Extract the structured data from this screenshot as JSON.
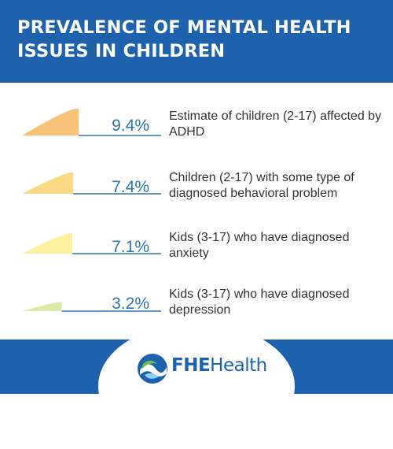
{
  "header": {
    "title": "PREVALENCE OF MENTAL HEALTH ISSUES IN CHILDREN"
  },
  "chart_data": {
    "type": "bar",
    "title": "PREVALENCE OF MENTAL HEALTH ISSUES IN CHILDREN",
    "unit": "%",
    "items": [
      {
        "value": 9.4,
        "label": "9.4%",
        "description": "Estimate of children (2-17) affected by ADHD",
        "color": "#f9c27a"
      },
      {
        "value": 7.4,
        "label": "7.4%",
        "description": "Children (2-17) with some type of diagnosed behavioral problem",
        "color": "#fbd985"
      },
      {
        "value": 7.1,
        "label": "7.1%",
        "description": "Kids (3-17) who have diagnosed anxiety",
        "color": "#fdf0a0"
      },
      {
        "value": 3.2,
        "label": "3.2%",
        "description": "Kids (3-17) who have diagnosed depression",
        "color": "#dde9a6"
      }
    ]
  },
  "colors": {
    "brand_blue": "#1e62ae",
    "value_blue": "#2e73b8",
    "underline": "#2e73b8"
  },
  "footer": {
    "logo_brand": "FHE",
    "logo_suffix": "Health",
    "logo_icon": "wave-leaf-icon"
  }
}
